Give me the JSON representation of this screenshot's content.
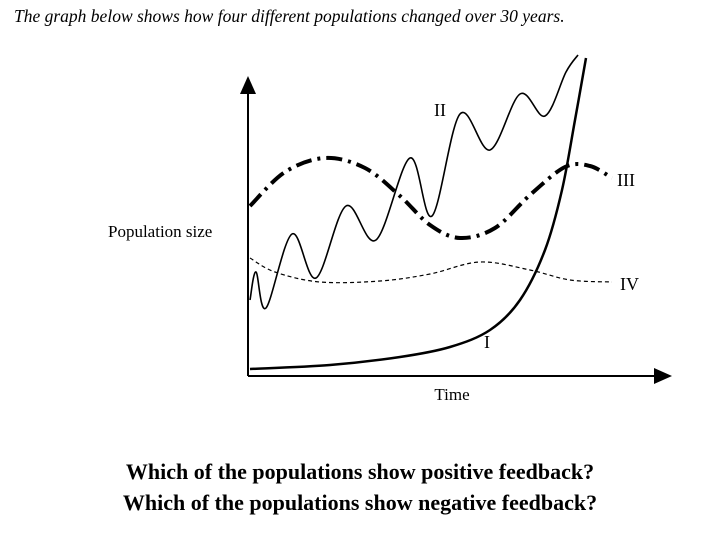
{
  "header": {
    "title": "The graph below shows how four different populations changed over 30 years."
  },
  "graph": {
    "y_label": "Population size",
    "x_label": "Time",
    "curves": [
      {
        "label": "I"
      },
      {
        "label": "II"
      },
      {
        "label": "III"
      },
      {
        "label": "IV"
      }
    ]
  },
  "questions": [
    "Which of the populations show positive feedback?",
    "Which of the populations show negative feedback?"
  ]
}
